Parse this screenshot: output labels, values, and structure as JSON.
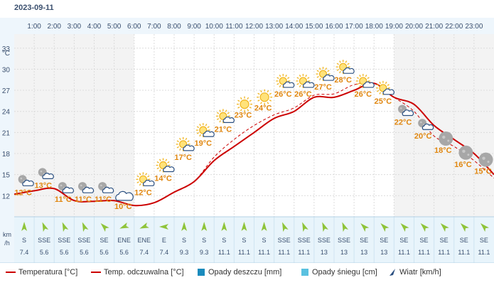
{
  "date": "2023-09-11",
  "colors": {
    "temp": "#cc0000",
    "feels": "#cc0000",
    "rain": "#1a8bbd",
    "snow": "#5ac1e0",
    "wind_arrow": "#8fc43a",
    "label": "#e0860e",
    "night_band": "#f3f3f3",
    "wind_band": "#e8f4fb"
  },
  "chart_data": {
    "type": "line",
    "hours": [
      "1:00",
      "2:00",
      "3:00",
      "4:00",
      "5:00",
      "6:00",
      "7:00",
      "8:00",
      "9:00",
      "10:00",
      "11:00",
      "12:00",
      "13:00",
      "14:00",
      "15:00",
      "16:00",
      "17:00",
      "18:00",
      "19:00",
      "20:00",
      "21:00",
      "22:00",
      "23:00"
    ],
    "y_unit": "°C",
    "y_ticks": [
      12,
      15,
      18,
      21,
      24,
      27,
      30,
      33
    ],
    "ylim": [
      9.5,
      35
    ],
    "series": [
      {
        "name": "Temperatura [°C]",
        "style": "solid",
        "x": [
          0,
          1,
          2,
          3,
          4,
          5,
          6,
          7,
          8,
          9,
          10,
          11,
          12,
          13,
          14,
          15,
          16,
          17,
          18,
          19,
          20,
          21,
          22,
          23,
          24
        ],
        "values": [
          12.2,
          12.7,
          13.0,
          11.3,
          11.2,
          11.3,
          10.6,
          11.0,
          12.5,
          14.0,
          17.0,
          19.0,
          21.0,
          23.0,
          24.0,
          26.0,
          26.0,
          27.0,
          28.0,
          26.0,
          25.0,
          22.0,
          20.0,
          18.0,
          15.0
        ]
      },
      {
        "name": "Temp. odczuwalna [°C]",
        "style": "dashed",
        "x": [
          0,
          1,
          2,
          3,
          4,
          5,
          6,
          7,
          8,
          9,
          10,
          11,
          12,
          13,
          14,
          15,
          16,
          17,
          18,
          19,
          20,
          21,
          22,
          23,
          24
        ],
        "values": [
          12.2,
          12.7,
          13.0,
          11.3,
          11.2,
          11.3,
          10.6,
          11.0,
          12.5,
          14.0,
          17.5,
          20.0,
          22.0,
          23.5,
          24.5,
          26.3,
          26.5,
          27.8,
          28.0,
          26.0,
          24.0,
          20.5,
          19.0,
          17.0,
          14.5
        ]
      }
    ],
    "point_labels": [
      {
        "x": 0.45,
        "text": "12°C",
        "icon": "moon-cloud-icon"
      },
      {
        "x": 1.45,
        "text": "13°C",
        "icon": "moon-cloud-icon"
      },
      {
        "x": 2.45,
        "text": "11°C",
        "icon": "moon-cloud-icon"
      },
      {
        "x": 3.45,
        "text": "11°C",
        "icon": "moon-cloud-icon"
      },
      {
        "x": 4.45,
        "text": "11°C",
        "icon": "moon-cloud-icon"
      },
      {
        "x": 5.45,
        "text": "10°C",
        "icon": "cloud-icon"
      },
      {
        "x": 6.45,
        "text": "12°C",
        "icon": "sun-cloud-icon"
      },
      {
        "x": 7.45,
        "text": "14°C",
        "icon": "sun-cloud-icon"
      },
      {
        "x": 8.45,
        "text": "17°C",
        "icon": "sun-cloud-icon"
      },
      {
        "x": 9.45,
        "text": "19°C",
        "icon": "sun-cloud-icon"
      },
      {
        "x": 10.45,
        "text": "21°C",
        "icon": "sun-cloud-icon"
      },
      {
        "x": 11.45,
        "text": "23°C",
        "icon": "sun-icon"
      },
      {
        "x": 12.45,
        "text": "24°C",
        "icon": "sun-icon"
      },
      {
        "x": 13.45,
        "text": "26°C",
        "icon": "sun-cloud-icon"
      },
      {
        "x": 14.45,
        "text": "26°C",
        "icon": "sun-cloud-icon"
      },
      {
        "x": 15.45,
        "text": "27°C",
        "icon": "sun-cloud-icon"
      },
      {
        "x": 16.45,
        "text": "28°C",
        "icon": "sun-cloud-icon"
      },
      {
        "x": 17.45,
        "text": "26°C",
        "icon": "sun-cloud-icon"
      },
      {
        "x": 18.45,
        "text": "25°C",
        "icon": "sun-cloud-icon"
      },
      {
        "x": 19.45,
        "text": "22°C",
        "icon": "moon-cloud-icon"
      },
      {
        "x": 20.45,
        "text": "20°C",
        "icon": "moon-cloud-icon"
      },
      {
        "x": 21.45,
        "text": "18°C",
        "icon": "moon-icon"
      },
      {
        "x": 22.45,
        "text": "16°C",
        "icon": "moon-icon"
      },
      {
        "x": 23.45,
        "text": "15°C",
        "icon": "moon-icon"
      }
    ],
    "wind": {
      "unit_line1": "km",
      "unit_line2": "/h",
      "directions": [
        "S",
        "SSE",
        "SSE",
        "SSE",
        "SE",
        "ENE",
        "ENE",
        "E",
        "S",
        "S",
        "S",
        "S",
        "S",
        "SSE",
        "SSE",
        "SSE",
        "SSE",
        "SE",
        "SE",
        "SE",
        "SE",
        "SE",
        "SE",
        "SE"
      ],
      "speeds": [
        "7.4",
        "5.6",
        "5.6",
        "5.6",
        "5.6",
        "5.6",
        "7.4",
        "7.4",
        "9.3",
        "9.3",
        "11.1",
        "11.1",
        "11.1",
        "11.1",
        "11.1",
        "13",
        "13",
        "13",
        "13",
        "11.1",
        "11.1",
        "11.1",
        "11.1",
        "11.1"
      ]
    },
    "night_ranges": [
      [
        0,
        6
      ],
      [
        19,
        24
      ]
    ],
    "grid": true
  },
  "legend": [
    {
      "kind": "line",
      "label": "Temperatura [°C]"
    },
    {
      "kind": "line",
      "label": "Temp. odczuwalna [°C]"
    },
    {
      "kind": "box",
      "color_key": "rain",
      "label": "Opady deszczu [mm]"
    },
    {
      "kind": "box",
      "color_key": "snow",
      "label": "Opady śniegu [cm]"
    },
    {
      "kind": "arrow",
      "label": "Wiatr [km/h]"
    }
  ]
}
